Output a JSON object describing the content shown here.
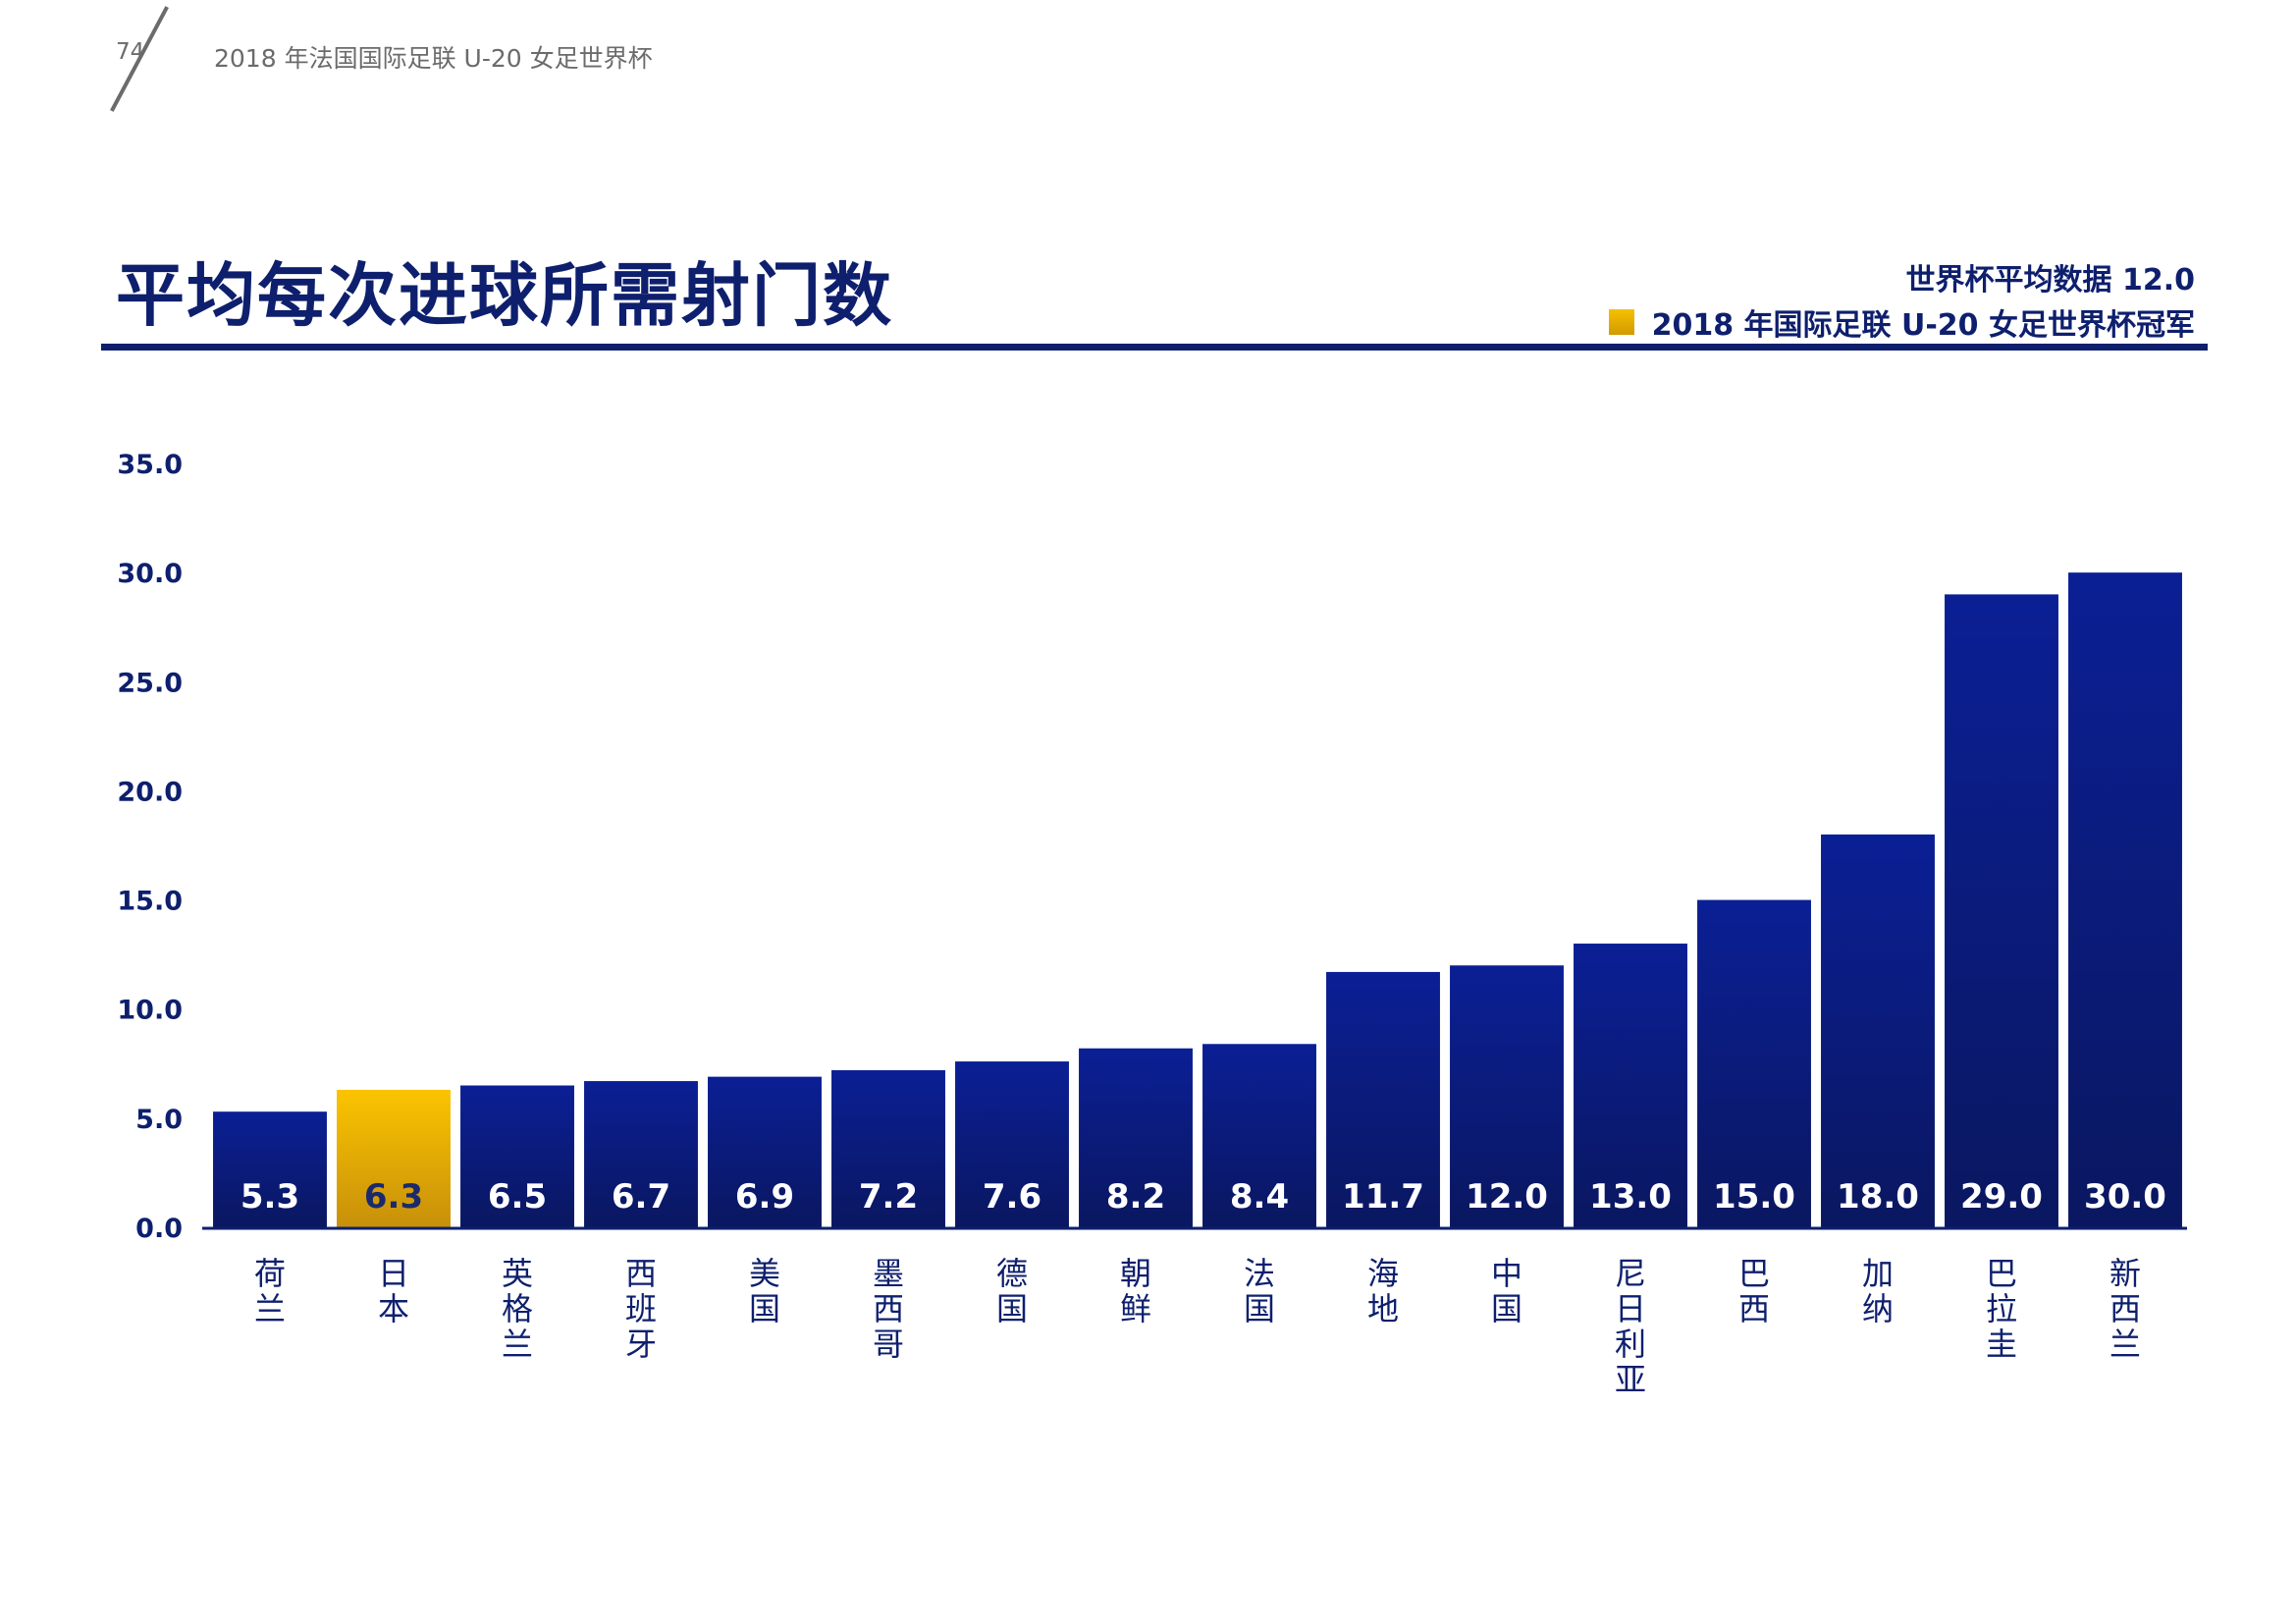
{
  "header": {
    "page_number": "74",
    "doc_title": "2018 年法国国际足联 U-20 女足世界杯"
  },
  "colors": {
    "bar": "#0b1e8c",
    "bar_dark": "#0a1a63",
    "highlight": "#f6c100",
    "highlight_dark": "#c8940a",
    "text_dark": "#0e1f6d"
  },
  "chart_data": {
    "type": "bar",
    "title": "平均每次进球所需射门数",
    "average_label": "世界杯平均数据  12.0",
    "legend": [
      {
        "label": "2018 年国际足联 U-20 女足世界杯冠军",
        "color": "#f6c100"
      }
    ],
    "categories": [
      "荷兰",
      "日本",
      "英格兰",
      "西班牙",
      "美国",
      "墨西哥",
      "德国",
      "朝鲜",
      "法国",
      "海地",
      "中国",
      "尼日利亚",
      "巴西",
      "加纳",
      "巴拉圭",
      "新西兰"
    ],
    "values": [
      5.3,
      6.3,
      6.5,
      6.7,
      6.9,
      7.2,
      7.6,
      8.2,
      8.4,
      11.7,
      12.0,
      13.0,
      15.0,
      18.0,
      29.0,
      30.0
    ],
    "value_labels": [
      "5.3",
      "6.3",
      "6.5",
      "6.7",
      "6.9",
      "7.2",
      "7.6",
      "8.2",
      "8.4",
      "11.7",
      "12.0",
      "13.0",
      "15.0",
      "18.0",
      "29.0",
      "30.0"
    ],
    "highlight_index": 1,
    "y_ticks": [
      "0.0",
      "5.0",
      "10.0",
      "15.0",
      "20.0",
      "25.0",
      "30.0",
      "35.0"
    ],
    "ylim": [
      0,
      35
    ],
    "grid": false
  }
}
